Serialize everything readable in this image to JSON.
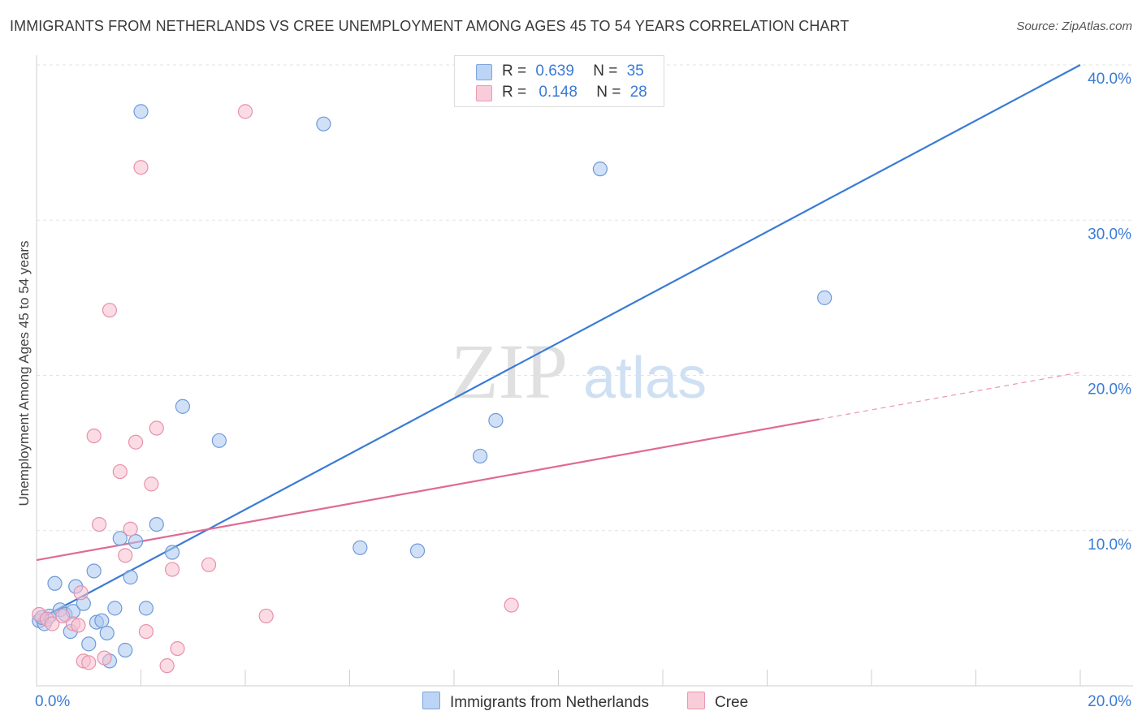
{
  "chart_data": {
    "type": "scatter",
    "title": "IMMIGRANTS FROM NETHERLANDS VS CREE UNEMPLOYMENT AMONG AGES 45 TO 54 YEARS CORRELATION CHART",
    "source": "Source: ZipAtlas.com",
    "ylabel": "Unemployment Among Ages 45 to 54 years",
    "xlim": [
      0,
      20
    ],
    "ylim": [
      0,
      40
    ],
    "x_tick_labels": [
      {
        "value": 0,
        "label": "0.0%"
      },
      {
        "value": 20,
        "label": "20.0%"
      }
    ],
    "y_tick_labels": [
      {
        "value": 10,
        "label": "10.0%"
      },
      {
        "value": 20,
        "label": "20.0%"
      },
      {
        "value": 30,
        "label": "30.0%"
      },
      {
        "value": 40,
        "label": "40.0%"
      }
    ],
    "watermark": {
      "part1": "ZIP",
      "part2": "atlas"
    },
    "series": [
      {
        "name": "Immigrants from Netherlands",
        "color": "#a9c8f0",
        "stroke": "#6f9ad8",
        "line_color": "#3a7bd5",
        "R": "0.639",
        "N": "35",
        "trend": {
          "x0": 0,
          "y0": 4.2,
          "x1": 20,
          "y1": 40.0,
          "dashed_from": null
        },
        "points": [
          [
            0.05,
            4.2
          ],
          [
            0.15,
            4.0
          ],
          [
            0.25,
            4.5
          ],
          [
            0.35,
            6.6
          ],
          [
            0.45,
            4.9
          ],
          [
            0.55,
            4.6
          ],
          [
            0.65,
            3.5
          ],
          [
            0.7,
            4.8
          ],
          [
            0.75,
            6.4
          ],
          [
            0.9,
            5.3
          ],
          [
            1.0,
            2.7
          ],
          [
            1.1,
            7.4
          ],
          [
            1.15,
            4.1
          ],
          [
            1.25,
            4.2
          ],
          [
            1.35,
            3.4
          ],
          [
            1.4,
            1.6
          ],
          [
            1.5,
            5.0
          ],
          [
            1.6,
            9.5
          ],
          [
            1.7,
            2.3
          ],
          [
            1.8,
            7.0
          ],
          [
            1.9,
            9.3
          ],
          [
            2.0,
            37.0
          ],
          [
            2.1,
            5.0
          ],
          [
            2.3,
            10.4
          ],
          [
            2.6,
            8.6
          ],
          [
            2.8,
            18.0
          ],
          [
            3.5,
            15.8
          ],
          [
            5.5,
            36.2
          ],
          [
            6.2,
            8.9
          ],
          [
            7.3,
            8.7
          ],
          [
            8.5,
            14.8
          ],
          [
            8.8,
            17.1
          ],
          [
            10.8,
            33.3
          ],
          [
            15.1,
            25.0
          ],
          [
            0.1,
            4.4
          ]
        ]
      },
      {
        "name": "Cree",
        "color": "#f7bfd0",
        "stroke": "#e890ab",
        "line_color": "#e06a95",
        "R": "0.148",
        "N": "28",
        "trend": {
          "x0": 0,
          "y0": 8.1,
          "x1": 20,
          "y1": 20.2,
          "dashed_from": 15.0
        },
        "points": [
          [
            0.05,
            4.6
          ],
          [
            0.2,
            4.3
          ],
          [
            0.3,
            4.0
          ],
          [
            0.5,
            4.5
          ],
          [
            0.7,
            4.0
          ],
          [
            0.8,
            3.9
          ],
          [
            0.85,
            6.0
          ],
          [
            0.9,
            1.6
          ],
          [
            1.0,
            1.5
          ],
          [
            1.1,
            16.1
          ],
          [
            1.2,
            10.4
          ],
          [
            1.3,
            1.8
          ],
          [
            1.4,
            24.2
          ],
          [
            1.6,
            13.8
          ],
          [
            1.7,
            8.4
          ],
          [
            1.8,
            10.1
          ],
          [
            1.9,
            15.7
          ],
          [
            2.0,
            33.4
          ],
          [
            2.1,
            3.5
          ],
          [
            2.2,
            13.0
          ],
          [
            2.3,
            16.6
          ],
          [
            2.5,
            1.3
          ],
          [
            2.6,
            7.5
          ],
          [
            2.7,
            2.4
          ],
          [
            3.3,
            7.8
          ],
          [
            4.0,
            37.0
          ],
          [
            4.4,
            4.5
          ],
          [
            9.1,
            5.2
          ]
        ]
      }
    ]
  },
  "legend": {
    "r_label": "R =",
    "n_label": "N ="
  }
}
